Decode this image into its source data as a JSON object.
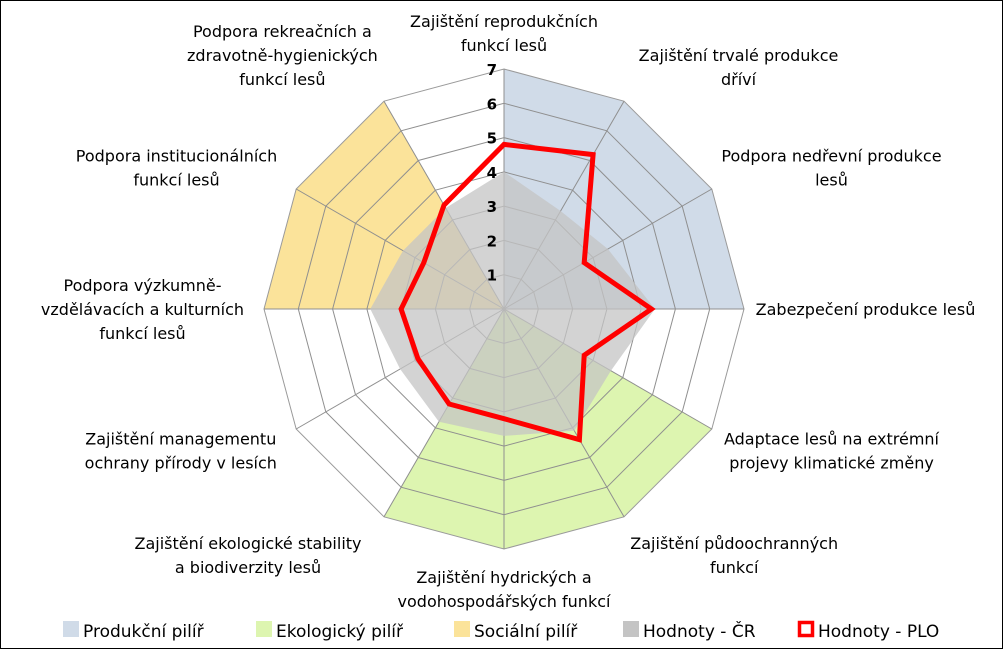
{
  "chart_data": {
    "type": "radar",
    "title": "",
    "rmin": 0,
    "rmax": 7,
    "ticks": [
      1,
      2,
      3,
      4,
      5,
      6,
      7
    ],
    "grid": true,
    "legend_position": "bottom",
    "categories": [
      [
        "Zajištění reprodukčních",
        "funkcí lesů"
      ],
      [
        "Zajištění trvalé produkce",
        "dříví"
      ],
      [
        "Podpora nedřevní produkce",
        "lesů"
      ],
      [
        "Zabezpečení produkce lesů"
      ],
      [
        "Adaptace lesů na extrémní",
        "projevy klimatické změny"
      ],
      [
        "Zajištění půdoochranných",
        "funkcí"
      ],
      [
        "Zajištění hydrických a",
        "vodohospodářských funkcí"
      ],
      [
        "Zajištění ekologické stability",
        "a biodiverzity lesů"
      ],
      [
        "Zajištění managementu",
        "ochrany přírody v lesích"
      ],
      [
        "Podpora výzkumně-",
        "vzdělávacích a kulturních",
        "funkcí lesů"
      ],
      [
        "Podpora institucionálních",
        "funkcí lesů"
      ],
      [
        "Podpora rekreačních a",
        "zdravotně-hygienických",
        "funkcí lesů"
      ]
    ],
    "series": [
      {
        "name": "Produkční pilíř",
        "kind": "pillar",
        "color": "#d0dbe8",
        "values": [
          7,
          7,
          7,
          7,
          0,
          0,
          0,
          0,
          0,
          0,
          0,
          0
        ]
      },
      {
        "name": "Ekologický pilíř",
        "kind": "pillar",
        "color": "#ddf5b0",
        "values": [
          0,
          0,
          0,
          0,
          7,
          7,
          7,
          7,
          0,
          0,
          0,
          0
        ]
      },
      {
        "name": "Sociální pilíř",
        "kind": "pillar",
        "color": "#fbe39a",
        "values": [
          0,
          0,
          0,
          0,
          0,
          0,
          0,
          0,
          0,
          7,
          7,
          7
        ]
      },
      {
        "name": "Hodnoty - ČR",
        "kind": "area",
        "color": "#c4c4c4",
        "values": [
          4.0,
          3.3,
          3.5,
          4.4,
          3.6,
          4.1,
          3.7,
          3.8,
          3.5,
          3.9,
          3.4,
          3.4
        ]
      },
      {
        "name": "Hodnoty - PLO",
        "kind": "line",
        "color": "#ff0000",
        "values": [
          4.8,
          5.2,
          2.7,
          4.3,
          2.7,
          4.4,
          3.2,
          3.2,
          2.9,
          3.0,
          2.7,
          3.5
        ]
      }
    ]
  }
}
